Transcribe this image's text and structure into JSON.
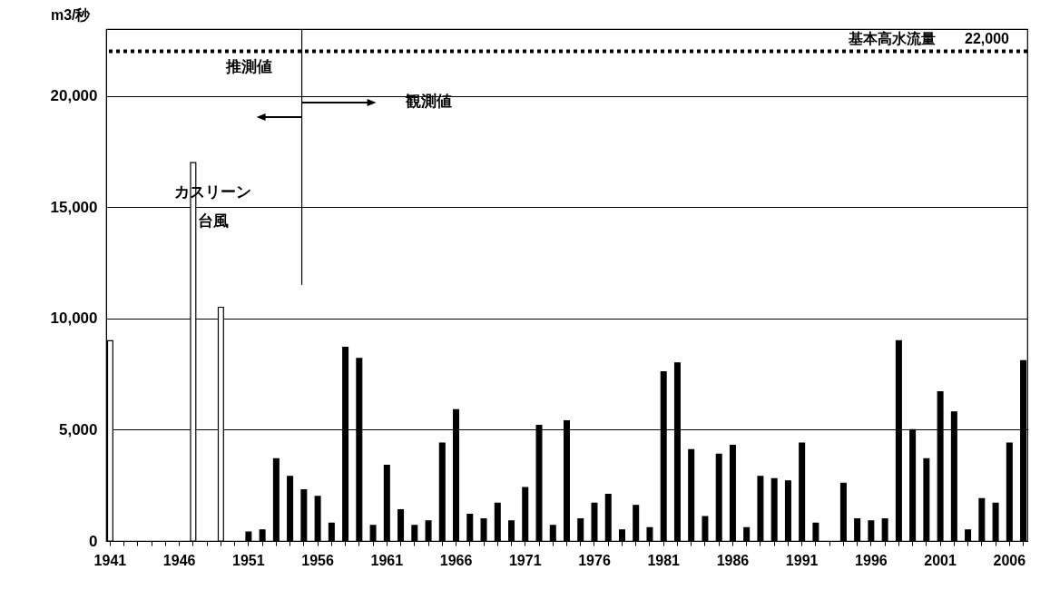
{
  "chart_data": {
    "type": "bar",
    "ylabel": "m3/秒",
    "categories": [
      "1941",
      null,
      null,
      null,
      null,
      "1946",
      null,
      null,
      null,
      null,
      "1951",
      null,
      null,
      null,
      null,
      "1956",
      null,
      null,
      null,
      null,
      "1961",
      null,
      null,
      null,
      null,
      "1966",
      null,
      null,
      null,
      null,
      "1971",
      null,
      null,
      null,
      null,
      "1976",
      null,
      null,
      null,
      null,
      "1981",
      null,
      null,
      null,
      null,
      "1986",
      null,
      null,
      null,
      null,
      "1991",
      null,
      null,
      null,
      null,
      "1996",
      null,
      null,
      null,
      null,
      "2001",
      null,
      null,
      null,
      null,
      "2006",
      null
    ],
    "values": [
      9000,
      null,
      null,
      null,
      null,
      null,
      17000,
      null,
      10500,
      null,
      400,
      500,
      3700,
      2900,
      2300,
      2000,
      800,
      8700,
      8200,
      700,
      3400,
      1400,
      700,
      900,
      4400,
      5900,
      1200,
      1000,
      1700,
      900,
      2400,
      5200,
      700,
      5400,
      1000,
      1700,
      2100,
      500,
      1600,
      600,
      7600,
      8000,
      4100,
      1100,
      3900,
      4300,
      600,
      2900,
      2800,
      2700,
      4400,
      800,
      null,
      2600,
      1000,
      900,
      1000,
      9000,
      5000,
      3700,
      6700,
      5800,
      500,
      1900,
      1700,
      4400,
      8100
    ],
    "colors": [
      "#ffffff",
      "#ffffff",
      "#ffffff",
      "#ffffff",
      "#ffffff",
      "#ffffff",
      "#ffffff",
      "#ffffff",
      "#ffffff",
      "#ffffff",
      "#000000",
      "#000000",
      "#000000",
      "#000000",
      "#000000",
      "#000000",
      "#000000",
      "#000000",
      "#000000",
      "#000000",
      "#000000",
      "#000000",
      "#000000",
      "#000000",
      "#000000",
      "#000000",
      "#000000",
      "#000000",
      "#000000",
      "#000000",
      "#000000",
      "#000000",
      "#000000",
      "#000000",
      "#000000",
      "#000000",
      "#000000",
      "#000000",
      "#000000",
      "#000000",
      "#000000",
      "#000000",
      "#000000",
      "#000000",
      "#000000",
      "#000000",
      "#000000",
      "#000000",
      "#000000",
      "#000000",
      "#000000",
      "#000000",
      "#000000",
      "#000000",
      "#000000",
      "#000000",
      "#000000",
      "#000000",
      "#000000",
      "#000000",
      "#000000",
      "#000000",
      "#000000",
      "#000000",
      "#000000",
      "#000000",
      "#000000"
    ],
    "ylim": [
      0,
      23000
    ],
    "yticks": [
      {
        "value": 0,
        "label": "0"
      },
      {
        "value": 5000,
        "label": "5,000"
      },
      {
        "value": 10000,
        "label": "10,000"
      },
      {
        "value": 15000,
        "label": "15,000"
      },
      {
        "value": 20000,
        "label": "20,000"
      }
    ],
    "grid": "y",
    "ref_lines": [
      {
        "axis": "y",
        "value": 22000,
        "label": "基本高水流量　　22,000",
        "color": "#000000",
        "line_style": "dotted"
      }
    ],
    "annotations": [
      "推測値",
      "観測値",
      "カスリーン台風"
    ]
  }
}
